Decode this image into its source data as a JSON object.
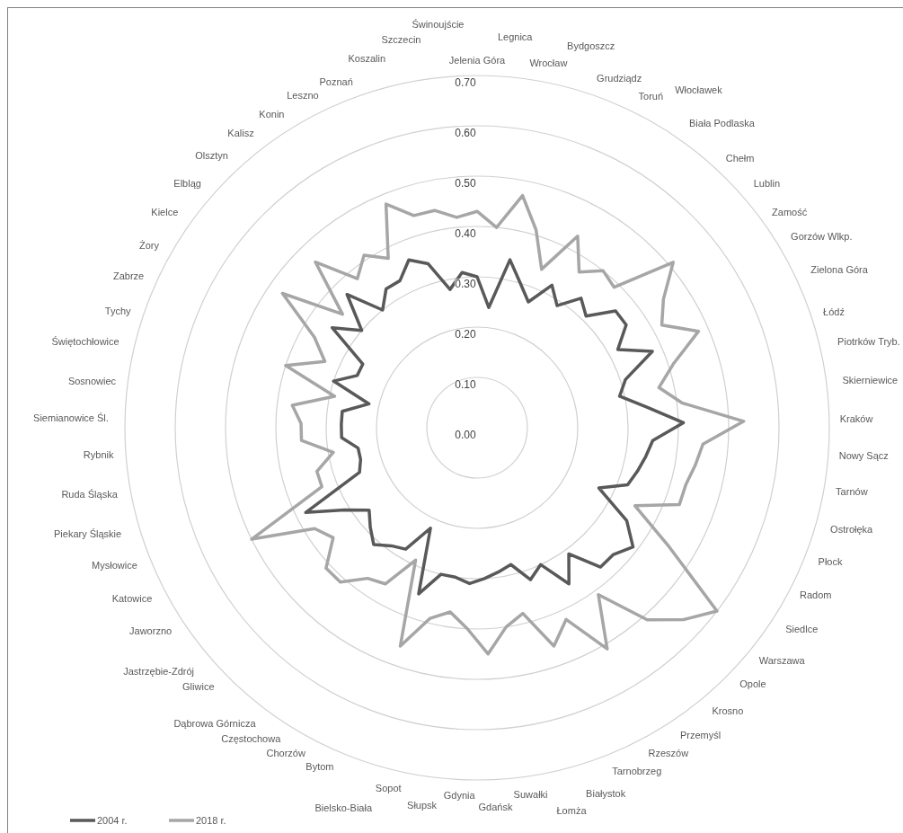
{
  "chart_data": {
    "type": "radar",
    "categories": [
      "Jelenia Góra",
      "Legnica",
      "Wrocław",
      "Bydgoszcz",
      "Grudziądz",
      "Toruń",
      "Włocławek",
      "Biała Podlaska",
      "Chełm",
      "Lublin",
      "Zamość",
      "Gorzów Wlkp.",
      "Zielona Góra",
      "Łódź",
      "Piotrków Tryb.",
      "Skierniewice",
      "Kraków",
      "Nowy Sącz",
      "Tarnów",
      "Ostrołęka",
      "Płock",
      "Radom",
      "Siedlce",
      "Warszawa",
      "Opole",
      "Krosno",
      "Przemyśl",
      "Rzeszów",
      "Tarnobrzeg",
      "Białystok",
      "Łomża",
      "Suwałki",
      "Gdańsk",
      "Gdynia",
      "Słupsk",
      "Sopot",
      "Bielsko-Biała",
      "Bytom",
      "Chorzów",
      "Częstochowa",
      "Dąbrowa Górnicza",
      "Gliwice",
      "Jastrzębie-Zdrój",
      "Jaworzno",
      "Katowice",
      "Mysłowice",
      "Piekary Śląskie",
      "Ruda Śląska",
      "Rybnik",
      "Siemianowice Śl.",
      "Sosnowiec",
      "Świętochłowice",
      "Tychy",
      "Zabrze",
      "Żory",
      "Kielce",
      "Elbląg",
      "Olsztyn",
      "Kalisz",
      "Konin",
      "Leszno",
      "Poznań",
      "Koszalin",
      "Szczecin",
      "Świnoujście"
    ],
    "series": [
      {
        "name": "2004 r.",
        "color": "#595959",
        "values": [
          0.3,
          0.24,
          0.34,
          0.3,
          0.27,
          0.32,
          0.29,
          0.33,
          0.31,
          0.36,
          0.36,
          0.32,
          0.38,
          0.31,
          0.29,
          0.34,
          0.41,
          0.35,
          0.34,
          0.33,
          0.32,
          0.27,
          0.35,
          0.39,
          0.37,
          0.37,
          0.31,
          0.36,
          0.3,
          0.32,
          0.28,
          0.29,
          0.3,
          0.31,
          0.3,
          0.3,
          0.35,
          0.22,
          0.28,
          0.29,
          0.31,
          0.29,
          0.27,
          0.31,
          0.38,
          0.25,
          0.24,
          0.24,
          0.27,
          0.27,
          0.27,
          0.22,
          0.3,
          0.26,
          0.26,
          0.35,
          0.3,
          0.37,
          0.3,
          0.33,
          0.33,
          0.36,
          0.34,
          0.28,
          0.31
        ]
      },
      {
        "name": "2018 r.",
        "color": "#a6a6a6",
        "values": [
          0.43,
          0.4,
          0.47,
          0.41,
          0.34,
          0.43,
          0.37,
          0.4,
          0.39,
          0.51,
          0.45,
          0.42,
          0.48,
          0.41,
          0.37,
          0.41,
          0.53,
          0.45,
          0.44,
          0.43,
          0.43,
          0.35,
          0.45,
          0.6,
          0.56,
          0.51,
          0.41,
          0.51,
          0.42,
          0.46,
          0.38,
          0.4,
          0.45,
          0.4,
          0.37,
          0.39,
          0.46,
          0.29,
          0.36,
          0.37,
          0.41,
          0.41,
          0.36,
          0.38,
          0.5,
          0.33,
          0.33,
          0.29,
          0.35,
          0.35,
          0.37,
          0.29,
          0.4,
          0.33,
          0.37,
          0.47,
          0.35,
          0.46,
          0.38,
          0.41,
          0.38,
          0.48,
          0.44,
          0.44,
          0.42
        ]
      }
    ],
    "ylim": [
      0,
      0.7
    ],
    "yticks": [
      {
        "value": 0,
        "label": "0.00"
      },
      {
        "value": 0.1,
        "label": "0.10"
      },
      {
        "value": 0.2,
        "label": "0.20"
      },
      {
        "value": 0.3,
        "label": "0.30"
      },
      {
        "value": 0.4,
        "label": "0.40"
      },
      {
        "value": 0.5,
        "label": "0.50"
      },
      {
        "value": 0.6,
        "label": "0.60"
      },
      {
        "value": 0.7,
        "label": "0.70"
      }
    ],
    "grid": true,
    "legend": "bottom left",
    "marker": "none",
    "line_style": "solid"
  }
}
